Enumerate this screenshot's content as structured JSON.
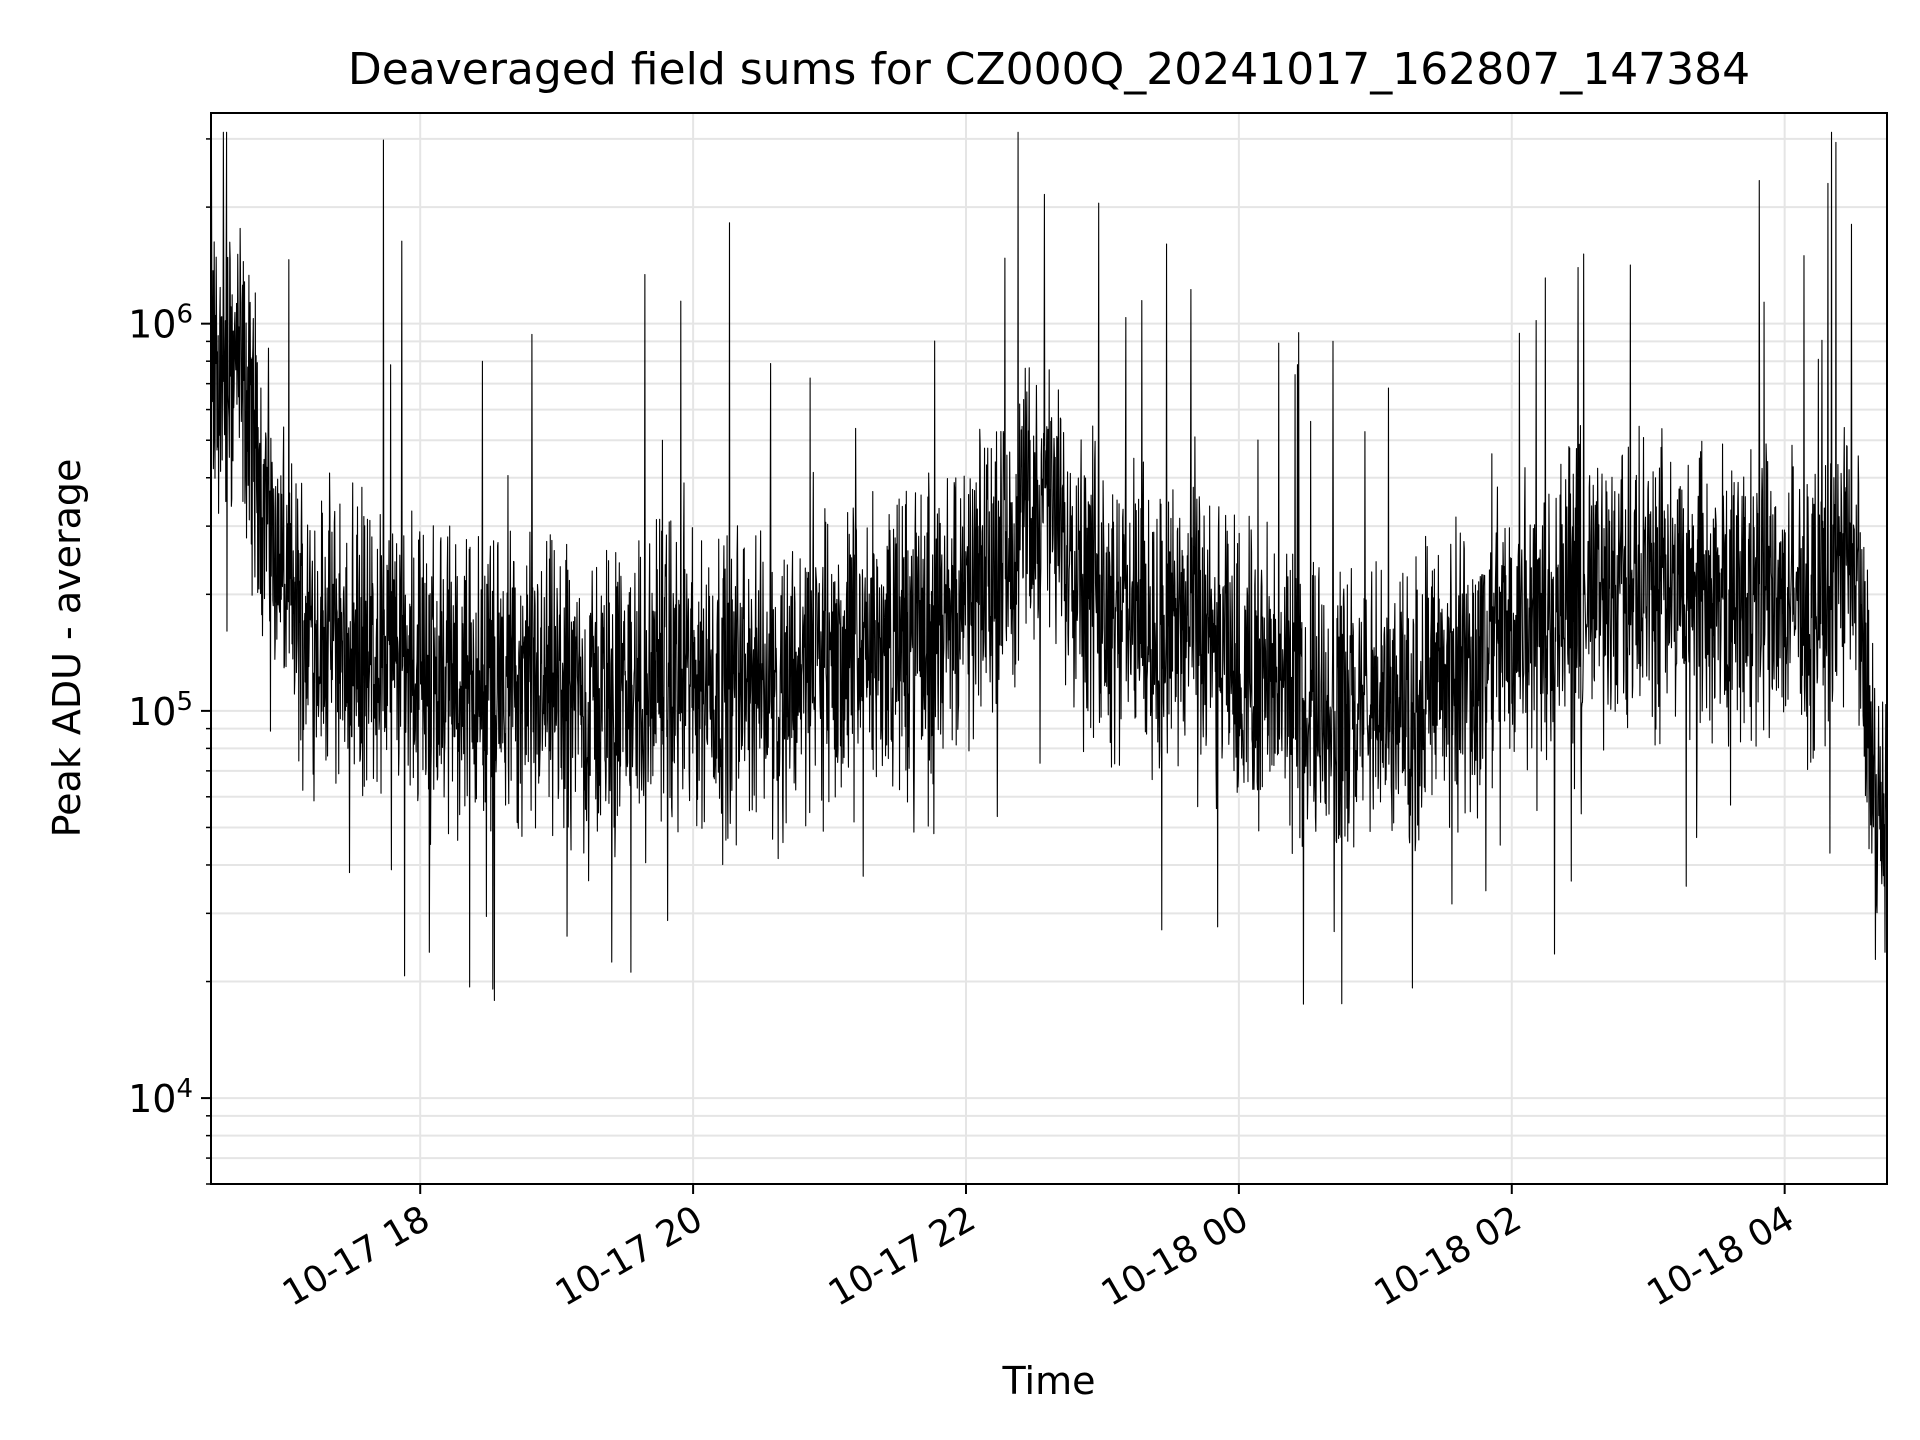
{
  "chart_data": {
    "type": "line",
    "title": "Deaveraged field sums for CZ000Q_20241017_162807_147384",
    "xlabel": "Time",
    "ylabel": "Peak ADU - average",
    "y_scale": "log",
    "ylim": [
      6000,
      3500000
    ],
    "xlim": [
      "2024-10-17 16:28",
      "2024-10-18 04:45"
    ],
    "grid": true,
    "line_color": "#000000",
    "grid_color": "#e5e5e5",
    "x_ticks": [
      {
        "t": "2024-10-17 18:00",
        "label": "10-17 18"
      },
      {
        "t": "2024-10-17 20:00",
        "label": "10-17 20"
      },
      {
        "t": "2024-10-17 22:00",
        "label": "10-17 22"
      },
      {
        "t": "2024-10-18 00:00",
        "label": "10-18 00"
      },
      {
        "t": "2024-10-18 02:00",
        "label": "10-18 02"
      },
      {
        "t": "2024-10-18 04:00",
        "label": "10-18 04"
      }
    ],
    "y_ticks": [
      {
        "value": 10000,
        "base": "10",
        "exp": "4"
      },
      {
        "value": 100000,
        "base": "10",
        "exp": "5"
      },
      {
        "value": 1000000,
        "base": "10",
        "exp": "6"
      }
    ],
    "series": [
      {
        "time": [
          "2024-10-17 16:28",
          "2024-10-17 16:35",
          "2024-10-17 16:40",
          "2024-10-17 16:45",
          "2024-10-17 16:50",
          "2024-10-17 16:55",
          "2024-10-17 17:00",
          "2024-10-17 17:05",
          "2024-10-17 17:15",
          "2024-10-17 17:30",
          "2024-10-17 17:45",
          "2024-10-17 18:00",
          "2024-10-17 18:30",
          "2024-10-17 19:00",
          "2024-10-17 19:30",
          "2024-10-17 19:45",
          "2024-10-17 20:00",
          "2024-10-17 20:30",
          "2024-10-17 21:00",
          "2024-10-17 21:30",
          "2024-10-17 22:00",
          "2024-10-17 22:15",
          "2024-10-17 22:30",
          "2024-10-17 22:45",
          "2024-10-17 23:00",
          "2024-10-17 23:30",
          "2024-10-18 00:00",
          "2024-10-18 00:30",
          "2024-10-18 00:50",
          "2024-10-18 01:00",
          "2024-10-18 01:30",
          "2024-10-18 01:45",
          "2024-10-18 02:00",
          "2024-10-18 02:30",
          "2024-10-18 03:00",
          "2024-10-18 03:30",
          "2024-10-18 04:00",
          "2024-10-18 04:15",
          "2024-10-18 04:30",
          "2024-10-18 04:35",
          "2024-10-18 04:40",
          "2024-10-18 04:45"
        ],
        "values": [
          700000,
          750000,
          800000,
          550000,
          400000,
          300000,
          220000,
          180000,
          160000,
          150000,
          140000,
          130000,
          115000,
          110000,
          108000,
          120000,
          125000,
          120000,
          135000,
          150000,
          180000,
          250000,
          350000,
          280000,
          200000,
          160000,
          130000,
          110000,
          95000,
          100000,
          120000,
          130000,
          170000,
          200000,
          210000,
          200000,
          190000,
          180000,
          300000,
          120000,
          60000,
          40000
        ]
      }
    ]
  }
}
